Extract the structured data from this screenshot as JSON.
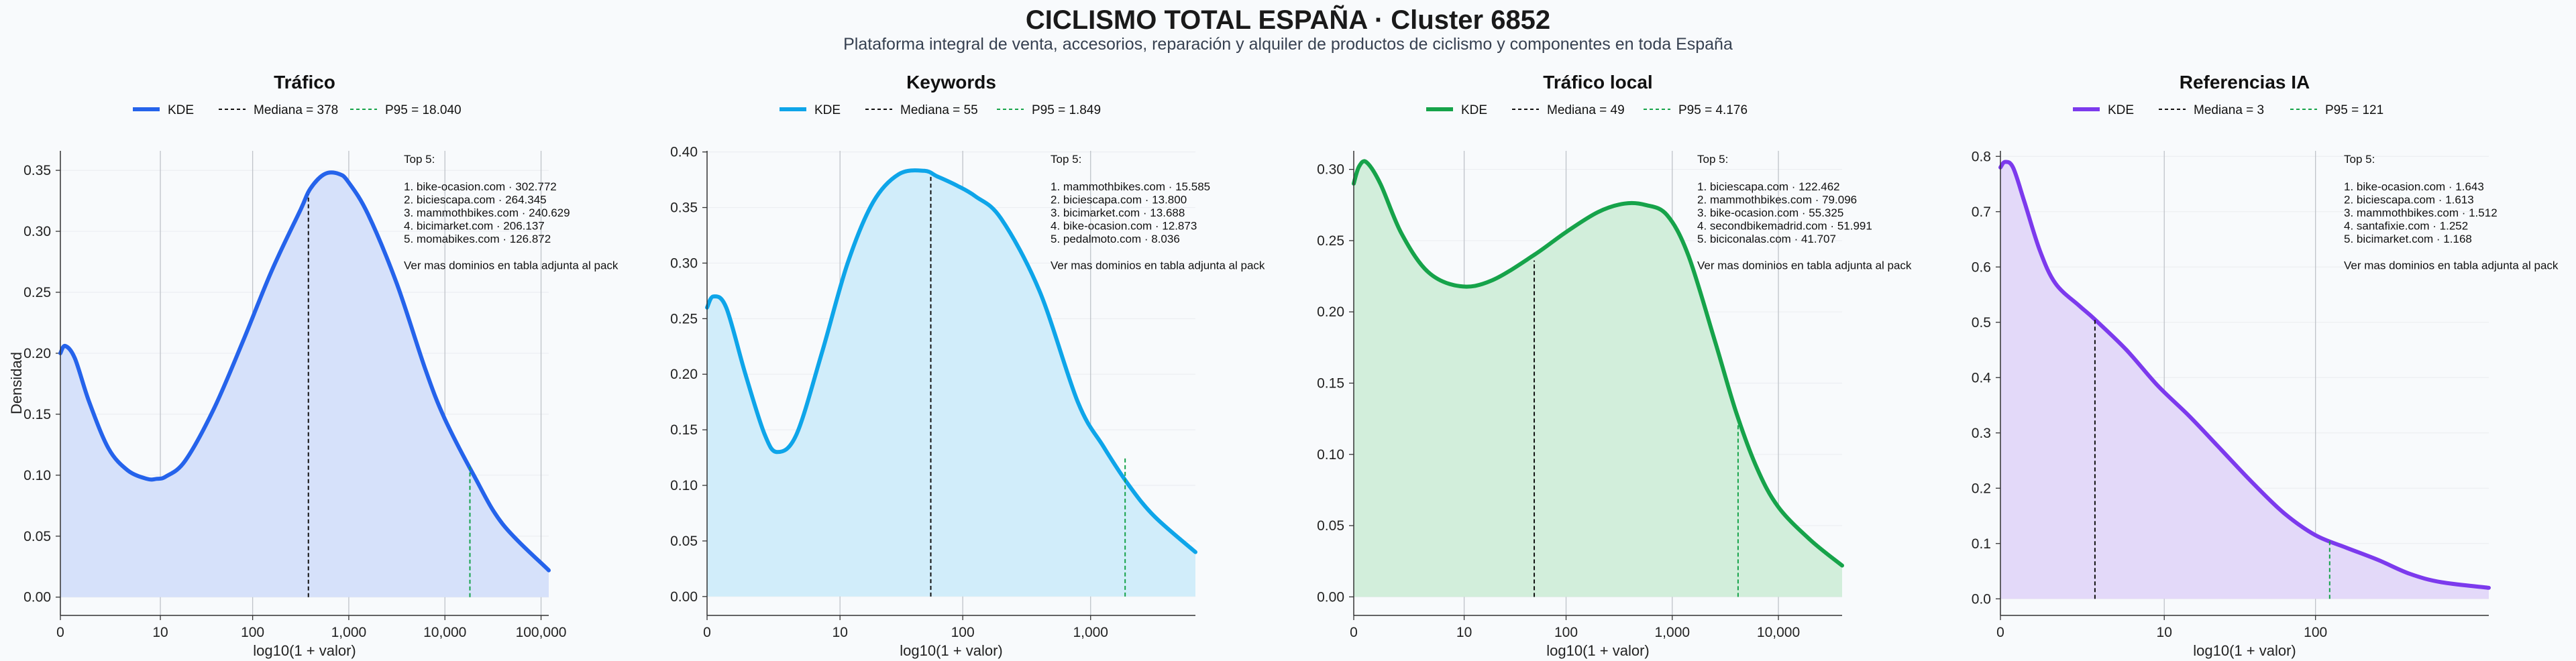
{
  "header": {
    "title": "CICLISMO TOTAL ESPAÑA · Cluster 6852",
    "subtitle": "Plataforma integral de venta, accesorios, reparación y alquiler de productos de ciclismo y componentes en toda España"
  },
  "colors": {
    "trafico": "#2563eb",
    "keywords": "#0ea5e9",
    "trafico_local": "#16a34a",
    "referencias_ia": "#7c3aed"
  },
  "chart_data": [
    {
      "type": "area",
      "title": "Tráfico",
      "xlabel": "log10(1 + valor)",
      "ylabel": "Densidad",
      "color": "#2563eb",
      "fill": "#d6e1fa",
      "xlim": [
        0,
        5.08
      ],
      "ylim": [
        -0.015,
        0.366
      ],
      "xticks": [
        {
          "v": 0,
          "label": "0"
        },
        {
          "v": 1.04,
          "label": "10"
        },
        {
          "v": 2.0,
          "label": "100"
        },
        {
          "v": 3.0,
          "label": "1,000"
        },
        {
          "v": 4.0,
          "label": "10,000"
        },
        {
          "v": 5.0,
          "label": "100,000"
        }
      ],
      "yticks": [
        {
          "v": 0,
          "label": "0.00"
        },
        {
          "v": 0.05,
          "label": "0.05"
        },
        {
          "v": 0.1,
          "label": "0.10"
        },
        {
          "v": 0.15,
          "label": "0.15"
        },
        {
          "v": 0.2,
          "label": "0.20"
        },
        {
          "v": 0.25,
          "label": "0.25"
        },
        {
          "v": 0.3,
          "label": "0.30"
        },
        {
          "v": 0.35,
          "label": "0.35"
        }
      ],
      "kde": {
        "x": [
          0,
          0.05,
          0.15,
          0.3,
          0.5,
          0.7,
          0.9,
          1.0,
          1.1,
          1.3,
          1.6,
          1.9,
          2.2,
          2.5,
          2.6,
          2.75,
          2.9,
          3.0,
          3.2,
          3.5,
          3.8,
          4.0,
          4.3,
          4.6,
          5.08
        ],
        "y": [
          0.2,
          0.206,
          0.196,
          0.16,
          0.122,
          0.104,
          0.097,
          0.097,
          0.099,
          0.112,
          0.155,
          0.21,
          0.268,
          0.318,
          0.335,
          0.347,
          0.347,
          0.34,
          0.314,
          0.257,
          0.186,
          0.146,
          0.1,
          0.06,
          0.022
        ]
      },
      "legend": [
        "KDE",
        "Mediana = 378",
        "P95 = 18.040"
      ],
      "median": {
        "x": 2.58,
        "y": 0.33
      },
      "p95": {
        "x": 4.26,
        "y": 0.107
      },
      "top_title": "Top 5:",
      "top": [
        "1. bike-ocasion.com · 302.772",
        "2. biciescapa.com · 264.345",
        "3. mammothbikes.com · 240.629",
        "4. bicimarket.com · 206.137",
        "5. momabikes.com · 126.872"
      ],
      "note": "Ver mas dominios en tabla adjunta al pack"
    },
    {
      "type": "area",
      "title": "Keywords",
      "xlabel": "log10(1 + valor)",
      "ylabel": "",
      "color": "#0ea5e9",
      "fill": "#d1edfa",
      "xlim": [
        0,
        3.82
      ],
      "ylim": [
        -0.017,
        0.401
      ],
      "xticks": [
        {
          "v": 0,
          "label": "0"
        },
        {
          "v": 1.04,
          "label": "10"
        },
        {
          "v": 2.0,
          "label": "100"
        },
        {
          "v": 3.0,
          "label": "1,000"
        }
      ],
      "yticks": [
        {
          "v": 0,
          "label": "0.00"
        },
        {
          "v": 0.05,
          "label": "0.05"
        },
        {
          "v": 0.1,
          "label": "0.10"
        },
        {
          "v": 0.15,
          "label": "0.15"
        },
        {
          "v": 0.2,
          "label": "0.20"
        },
        {
          "v": 0.25,
          "label": "0.25"
        },
        {
          "v": 0.3,
          "label": "0.30"
        },
        {
          "v": 0.35,
          "label": "0.35"
        },
        {
          "v": 0.4,
          "label": "0.40"
        }
      ],
      "kde": {
        "x": [
          0,
          0.05,
          0.15,
          0.3,
          0.45,
          0.55,
          0.7,
          0.9,
          1.1,
          1.3,
          1.5,
          1.7,
          1.8,
          1.95,
          2.1,
          2.3,
          2.6,
          2.9,
          3.1,
          3.3,
          3.5,
          3.82
        ],
        "y": [
          0.26,
          0.27,
          0.26,
          0.2,
          0.146,
          0.13,
          0.146,
          0.22,
          0.3,
          0.355,
          0.38,
          0.383,
          0.378,
          0.37,
          0.36,
          0.34,
          0.275,
          0.175,
          0.135,
          0.1,
          0.072,
          0.04
        ]
      },
      "legend": [
        "KDE",
        "Mediana = 55",
        "P95 = 1.849"
      ],
      "median": {
        "x": 1.75,
        "y": 0.38
      },
      "p95": {
        "x": 3.27,
        "y": 0.125
      },
      "top_title": "Top 5:",
      "top": [
        "1. mammothbikes.com · 15.585",
        "2. biciescapa.com · 13.800",
        "3. bicimarket.com · 13.688",
        "4. bike-ocasion.com · 12.873",
        "5. pedalmoto.com · 8.036"
      ],
      "note": "Ver mas dominios en tabla adjunta al pack"
    },
    {
      "type": "area",
      "title": "Tráfico local",
      "xlabel": "log10(1 + valor)",
      "ylabel": "",
      "color": "#16a34a",
      "fill": "#d2eedb",
      "xlim": [
        0,
        4.6
      ],
      "ylim": [
        -0.013,
        0.313
      ],
      "xticks": [
        {
          "v": 0,
          "label": "0"
        },
        {
          "v": 1.04,
          "label": "10"
        },
        {
          "v": 2.0,
          "label": "100"
        },
        {
          "v": 3.0,
          "label": "1,000"
        },
        {
          "v": 4.0,
          "label": "10,000"
        }
      ],
      "yticks": [
        {
          "v": 0,
          "label": "0.00"
        },
        {
          "v": 0.05,
          "label": "0.05"
        },
        {
          "v": 0.1,
          "label": "0.10"
        },
        {
          "v": 0.15,
          "label": "0.15"
        },
        {
          "v": 0.2,
          "label": "0.20"
        },
        {
          "v": 0.25,
          "label": "0.25"
        },
        {
          "v": 0.3,
          "label": "0.30"
        }
      ],
      "kde": {
        "x": [
          0,
          0.05,
          0.12,
          0.25,
          0.45,
          0.7,
          1.0,
          1.3,
          1.7,
          2.0,
          2.3,
          2.55,
          2.75,
          2.95,
          3.15,
          3.4,
          3.6,
          3.8,
          4.0,
          4.3,
          4.6
        ],
        "y": [
          0.29,
          0.302,
          0.305,
          0.29,
          0.255,
          0.228,
          0.218,
          0.222,
          0.24,
          0.256,
          0.27,
          0.276,
          0.275,
          0.268,
          0.24,
          0.18,
          0.13,
          0.09,
          0.063,
          0.04,
          0.022
        ]
      },
      "legend": [
        "KDE",
        "Mediana = 49",
        "P95 = 4.176"
      ],
      "median": {
        "x": 1.7,
        "y": 0.236
      },
      "p95": {
        "x": 3.62,
        "y": 0.128
      },
      "top_title": "Top 5:",
      "top": [
        "1. biciescapa.com · 122.462",
        "2. mammothbikes.com · 79.096",
        "3. bike-ocasion.com · 55.325",
        "4. secondbikemadrid.com · 51.991",
        "5. biciconalas.com · 41.707"
      ],
      "note": "Ver mas dominios en tabla adjunta al pack"
    },
    {
      "type": "area",
      "title": "Referencias IA",
      "xlabel": "log10(1 + valor)",
      "ylabel": "",
      "color": "#7c3aed",
      "fill": "#e3d9f9",
      "xlim": [
        0,
        3.1
      ],
      "ylim": [
        -0.03,
        0.81
      ],
      "xticks": [
        {
          "v": 0,
          "label": "0"
        },
        {
          "v": 1.04,
          "label": "10"
        },
        {
          "v": 2.0,
          "label": "100"
        }
      ],
      "yticks": [
        {
          "v": 0,
          "label": "0.0"
        },
        {
          "v": 0.1,
          "label": "0.1"
        },
        {
          "v": 0.2,
          "label": "0.2"
        },
        {
          "v": 0.3,
          "label": "0.3"
        },
        {
          "v": 0.4,
          "label": "0.4"
        },
        {
          "v": 0.5,
          "label": "0.5"
        },
        {
          "v": 0.6,
          "label": "0.6"
        },
        {
          "v": 0.7,
          "label": "0.7"
        },
        {
          "v": 0.8,
          "label": "0.8"
        }
      ],
      "kde": {
        "x": [
          0,
          0.03,
          0.08,
          0.15,
          0.25,
          0.35,
          0.5,
          0.6,
          0.8,
          1.0,
          1.2,
          1.4,
          1.6,
          1.8,
          2.0,
          2.2,
          2.4,
          2.6,
          2.8,
          3.1
        ],
        "y": [
          0.78,
          0.79,
          0.78,
          0.72,
          0.63,
          0.57,
          0.53,
          0.505,
          0.45,
          0.385,
          0.33,
          0.27,
          0.21,
          0.155,
          0.115,
          0.092,
          0.07,
          0.045,
          0.03,
          0.02
        ]
      },
      "legend": [
        "KDE",
        "Mediana = 3",
        "P95 = 121"
      ],
      "median": {
        "x": 0.6,
        "y": 0.505
      },
      "p95": {
        "x": 2.09,
        "y": 0.105
      },
      "top_title": "Top 5:",
      "top": [
        "1. bike-ocasion.com · 1.643",
        "2. biciescapa.com · 1.613",
        "3. mammothbikes.com · 1.512",
        "4. santafixie.com · 1.252",
        "5. bicimarket.com · 1.168"
      ],
      "note": "Ver mas dominios en tabla adjunta al pack"
    }
  ]
}
